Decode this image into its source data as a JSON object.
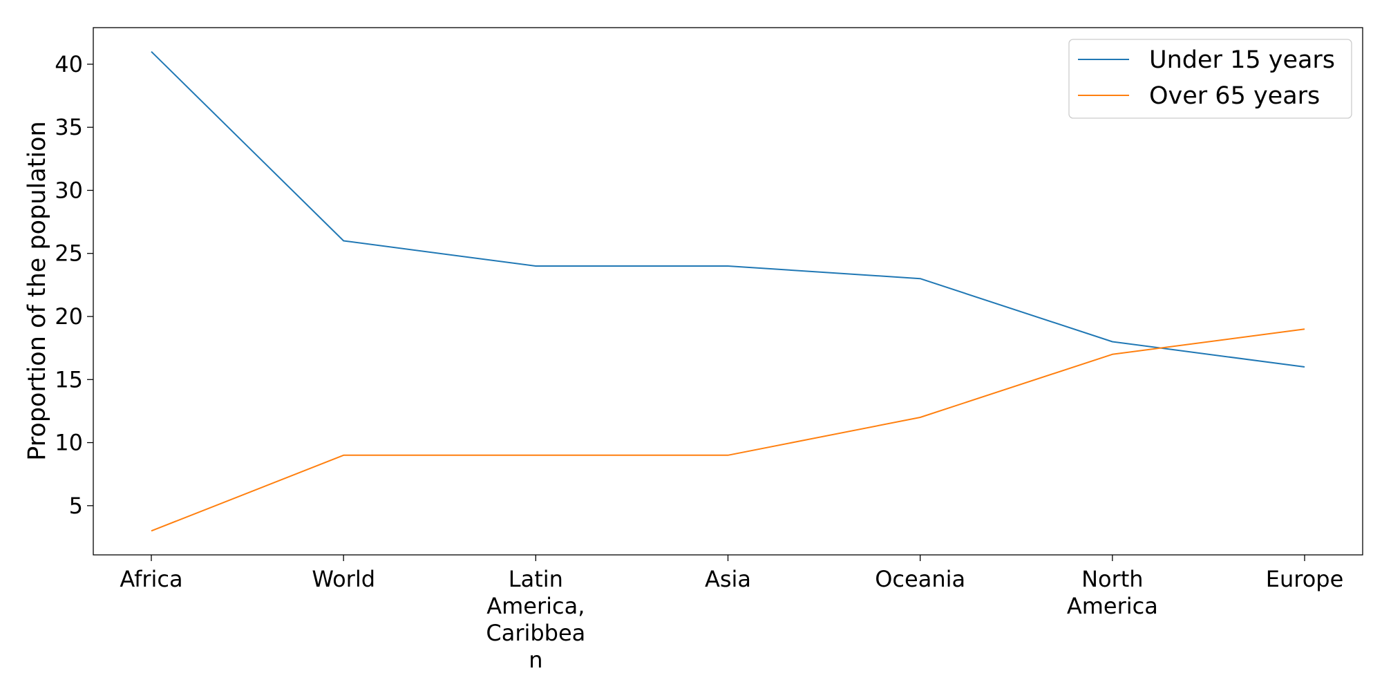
{
  "chart_data": {
    "type": "line",
    "categories": [
      [
        "Africa"
      ],
      [
        "World"
      ],
      [
        "Latin",
        "America,",
        "Caribbea",
        "n"
      ],
      [
        "Asia"
      ],
      [
        "Oceania"
      ],
      [
        "North",
        "America"
      ],
      [
        "Europe"
      ]
    ],
    "series": [
      {
        "name": "Under 15 years",
        "values": [
          41,
          26,
          24,
          24,
          23,
          18,
          16
        ],
        "color": "#1f77b4"
      },
      {
        "name": "Over 65 years",
        "values": [
          3,
          9,
          9,
          9,
          12,
          17,
          19
        ],
        "color": "#ff7f0e"
      }
    ],
    "ylabel": "Proportion of the population",
    "xlabel": "",
    "title": "",
    "ylim": [
      1.1,
      42.9
    ],
    "yticks": [
      5,
      10,
      15,
      20,
      25,
      30,
      35,
      40
    ],
    "grid": false,
    "legend": "top-right"
  }
}
